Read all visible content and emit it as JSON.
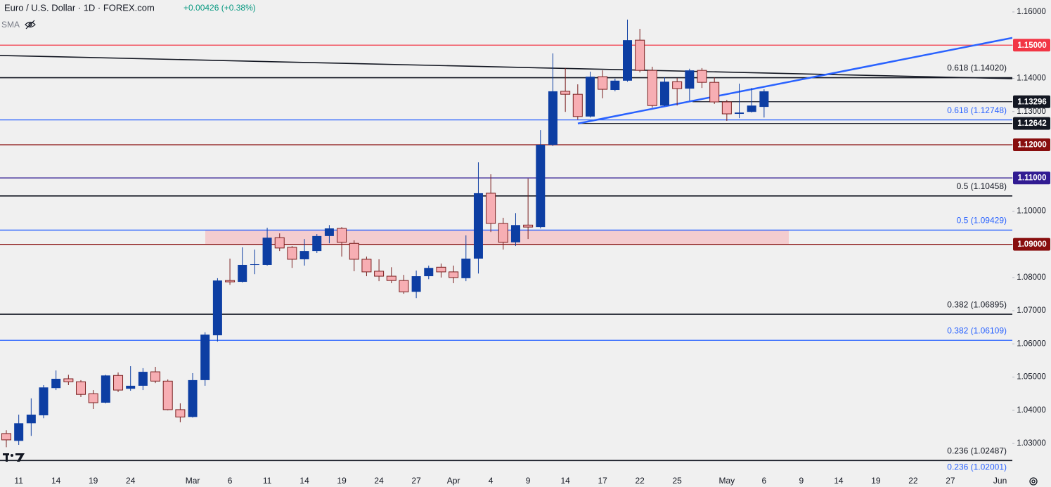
{
  "chart_data": {
    "type": "candlestick",
    "title": "Euro / U.S. Dollar · 1D · FOREX.com",
    "change": "+0.00426 (+0.38%)",
    "indicator": "SMA",
    "up_color": "#0d3ea3",
    "down_color": "#f7aeb3",
    "down_outline": "#7a1f1f",
    "categories": [
      null,
      "11",
      null,
      null,
      "14",
      null,
      null,
      "19",
      null,
      null,
      "24",
      null,
      null,
      null,
      null,
      "Mar",
      null,
      null,
      "6",
      null,
      null,
      "11",
      null,
      null,
      "14",
      null,
      null,
      "19",
      null,
      null,
      "24",
      null,
      null,
      "27",
      null,
      null,
      "Apr",
      null,
      null,
      "4",
      null,
      null,
      "9",
      null,
      null,
      "14",
      null,
      null,
      "17",
      null,
      null,
      "22",
      null,
      null,
      "25",
      null,
      null,
      null,
      "May",
      null,
      null,
      "6",
      null,
      null,
      "9",
      null,
      null,
      "14",
      null,
      null,
      "19",
      null,
      null,
      "22",
      null,
      null,
      "27",
      null,
      null,
      null,
      "Jun",
      null
    ],
    "open": [
      1.033,
      1.0308,
      1.0361,
      1.0385,
      1.0467,
      1.0495,
      1.0486,
      1.045,
      1.0423,
      1.0505,
      1.0465,
      1.0474,
      1.0516,
      1.0488,
      1.0402,
      1.038,
      1.0491,
      1.0626,
      1.0791,
      1.0787,
      1.0838,
      1.0838,
      1.092,
      1.0891,
      1.0855,
      1.088,
      1.0925,
      1.0948,
      1.0903,
      1.0855,
      1.0819,
      1.0804,
      1.0791,
      1.0757,
      1.0804,
      1.0831,
      1.0817,
      1.0798,
      1.0857,
      1.1054,
      1.0963,
      1.0906,
      1.0958,
      1.0952,
      1.12,
      1.1361,
      1.1352,
      1.1285,
      1.1405,
      1.1365,
      1.1393,
      1.1515,
      1.1424,
      1.1318,
      1.139,
      1.1369,
      1.1424,
      1.1388,
      1.1329,
      1.1293,
      1.1299,
      1.1314,
      null,
      null,
      null,
      null,
      null,
      null,
      null,
      null,
      null,
      null,
      null,
      null,
      null,
      null,
      null,
      null,
      null,
      null,
      null,
      null
    ],
    "high": [
      1.034,
      1.0387,
      1.0436,
      1.0476,
      1.052,
      1.0507,
      1.0491,
      1.0461,
      1.0507,
      1.0514,
      1.0533,
      1.0527,
      1.0531,
      1.0493,
      1.0421,
      1.0512,
      1.0635,
      1.0798,
      1.0857,
      1.0891,
      1.0884,
      1.095,
      1.0933,
      1.0895,
      1.0916,
      1.0931,
      1.0958,
      1.0952,
      1.0912,
      1.0863,
      1.0855,
      1.0831,
      1.0808,
      1.0821,
      1.0836,
      1.0842,
      1.0836,
      1.0927,
      1.1147,
      1.1111,
      1.098,
      1.0994,
      1.1098,
      1.1244,
      1.1475,
      1.1431,
      1.1382,
      1.142,
      1.1424,
      1.1399,
      1.1577,
      1.1549,
      1.1435,
      1.1403,
      1.1401,
      1.1429,
      1.1431,
      1.1403,
      1.1335,
      1.1384,
      1.1371,
      1.1367,
      null,
      null,
      null,
      null,
      null,
      null,
      null,
      null,
      null,
      null,
      null,
      null,
      null,
      null,
      null,
      null,
      null,
      null,
      null,
      null
    ],
    "low": [
      1.0289,
      1.0296,
      1.0323,
      1.0376,
      1.0461,
      1.0476,
      1.044,
      1.0404,
      1.0421,
      1.0455,
      1.0459,
      1.0461,
      1.0482,
      1.04,
      1.0364,
      1.0378,
      1.0474,
      1.0607,
      1.0778,
      1.0785,
      1.081,
      1.0836,
      1.088,
      1.0829,
      1.0836,
      1.0874,
      1.0903,
      1.0863,
      1.0819,
      1.0804,
      1.0789,
      1.0783,
      1.0751,
      1.0738,
      1.0795,
      1.08,
      1.0783,
      1.0789,
      1.0812,
      1.0937,
      1.0884,
      1.0895,
      1.0916,
      1.0948,
      1.1196,
      1.1299,
      1.1276,
      1.1282,
      1.134,
      1.1361,
      1.139,
      1.1418,
      1.1312,
      1.1316,
      1.1318,
      1.1333,
      1.1371,
      1.1323,
      1.1272,
      1.128,
      1.1297,
      1.1282,
      null,
      null,
      null,
      null,
      null,
      null,
      null,
      null,
      null,
      null,
      null,
      null,
      null,
      null,
      null,
      null,
      null,
      null,
      null,
      null
    ],
    "close": [
      1.0311,
      1.0361,
      1.0387,
      1.0469,
      1.0495,
      1.0486,
      1.0448,
      1.0423,
      1.0505,
      1.0461,
      1.0474,
      1.0516,
      1.0488,
      1.0402,
      1.038,
      1.0491,
      1.0628,
      1.0791,
      1.0787,
      1.0838,
      1.084,
      1.092,
      1.0889,
      1.0855,
      1.088,
      1.0925,
      1.0948,
      1.0906,
      1.0855,
      1.0817,
      1.0804,
      1.0791,
      1.0757,
      1.0804,
      1.0829,
      1.0817,
      1.08,
      1.0857,
      1.1054,
      1.0963,
      1.0906,
      1.0958,
      1.0952,
      1.12,
      1.1361,
      1.1352,
      1.1285,
      1.1405,
      1.1367,
      1.1393,
      1.1515,
      1.1424,
      1.1318,
      1.139,
      1.1369,
      1.1424,
      1.1388,
      1.1329,
      1.1293,
      1.1297,
      1.1318,
      1.1361,
      null,
      null,
      null,
      null,
      null,
      null,
      null,
      null,
      null,
      null,
      null,
      null,
      null,
      null,
      null,
      null,
      null,
      null,
      null,
      null
    ],
    "ylim": [
      1.0205,
      1.1636
    ],
    "yticks": [
      {
        "value": 1.16,
        "label": "1.16000"
      },
      {
        "value": 1.15,
        "label": "1.15000"
      },
      {
        "value": 1.14,
        "label": "1.14000"
      },
      {
        "value": 1.13,
        "label": "1.13000"
      },
      {
        "value": 1.12,
        "label": "1.12000"
      },
      {
        "value": 1.11,
        "label": "1.11000"
      },
      {
        "value": 1.1,
        "label": "1.10000"
      },
      {
        "value": 1.09,
        "label": "1.09000"
      },
      {
        "value": 1.08,
        "label": "1.08000"
      },
      {
        "value": 1.07,
        "label": "1.07000"
      },
      {
        "value": 1.06,
        "label": "1.06000"
      },
      {
        "value": 1.05,
        "label": "1.05000"
      },
      {
        "value": 1.04,
        "label": "1.04000"
      },
      {
        "value": 1.03,
        "label": "1.03000"
      }
    ],
    "grid": false,
    "zone": {
      "low": 1.09,
      "high": 1.09429,
      "color": "#f5c5c9"
    },
    "levels": [
      {
        "value": 1.15,
        "label": "1.15000",
        "color": "#f23645",
        "kind": "tag"
      },
      {
        "value": 1.1402,
        "label": "0.618 (1.14020)",
        "color": "#131722",
        "kind": "fib"
      },
      {
        "value": 1.13296,
        "label": "1.13296",
        "color": "#131722",
        "kind": "tag"
      },
      {
        "value": 1.12748,
        "label": "0.618 (1.12748)",
        "color": "#2962ff",
        "kind": "fib"
      },
      {
        "value": 1.12642,
        "label": "1.12642",
        "color": "#131722",
        "kind": "tag"
      },
      {
        "value": 1.12,
        "label": "1.12000",
        "color": "#880e0e",
        "kind": "tag"
      },
      {
        "value": 1.11,
        "label": "1.11000",
        "color": "#311b92",
        "kind": "tag"
      },
      {
        "value": 1.10458,
        "label": "0.5 (1.10458)",
        "color": "#131722",
        "kind": "fib"
      },
      {
        "value": 1.09429,
        "label": "0.5 (1.09429)",
        "color": "#2962ff",
        "kind": "fib"
      },
      {
        "value": 1.09,
        "label": "1.09000",
        "color": "#880e0e",
        "kind": "tag"
      },
      {
        "value": 1.06895,
        "label": "0.382 (1.06895)",
        "color": "#131722",
        "kind": "fib"
      },
      {
        "value": 1.06109,
        "label": "0.382 (1.06109)",
        "color": "#2962ff",
        "kind": "fib"
      },
      {
        "value": 1.02487,
        "label": "0.236 (1.02487)",
        "color": "#131722",
        "kind": "fib"
      },
      {
        "value": 1.02001,
        "label": "0.236 (1.02001)",
        "color": "#2962ff",
        "kind": "fib"
      }
    ],
    "trendlines": [
      {
        "start": 1.1469,
        "end": 1.1399,
        "color": "#131722"
      },
      {
        "start": 1.1264,
        "end": 1.1522,
        "color": "#2962ff"
      }
    ]
  }
}
